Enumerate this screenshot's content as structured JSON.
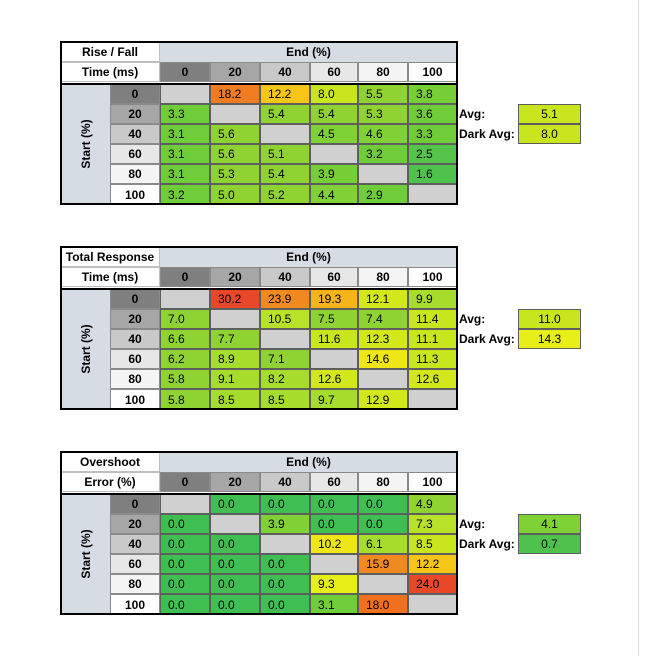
{
  "columns": [
    "0",
    "20",
    "40",
    "60",
    "80",
    "100"
  ],
  "rows": [
    "0",
    "20",
    "40",
    "60",
    "80",
    "100"
  ],
  "header_colors": [
    "#7f7f7f",
    "#a6a6a6",
    "#c9c9c9",
    "#e7e7e7",
    "#f4f4f4",
    "#ffffff"
  ],
  "tables": [
    {
      "title_line1": "Rise / Fall",
      "title_line2": "Time (ms)",
      "end_label": "End (%)",
      "start_label": "Start (%)",
      "values": [
        [
          null,
          "18.2",
          "12.2",
          "8.0",
          "5.5",
          "3.8"
        ],
        [
          "3.3",
          null,
          "5.4",
          "5.4",
          "5.3",
          "3.6"
        ],
        [
          "3.1",
          "5.6",
          null,
          "4.5",
          "4.6",
          "3.3"
        ],
        [
          "3.1",
          "5.6",
          "5.1",
          null,
          "3.2",
          "2.5"
        ],
        [
          "3.1",
          "5.3",
          "5.4",
          "3.9",
          null,
          "1.6"
        ],
        [
          "3.2",
          "5.0",
          "5.2",
          "4.4",
          "2.9",
          null
        ]
      ],
      "colors": [
        [
          null,
          "#f07c22",
          "#f5c518",
          "#c8e61e",
          "#8fd332",
          "#77cf38"
        ],
        [
          "#6fcd3a",
          null,
          "#8fd332",
          "#8fd332",
          "#8fd332",
          "#6fcd3a"
        ],
        [
          "#6fcd3a",
          "#8fd332",
          null,
          "#80d135",
          "#80d135",
          "#6fcd3a"
        ],
        [
          "#6fcd3a",
          "#8fd332",
          "#8fd332",
          null,
          "#6fcd3a",
          "#55c44a"
        ],
        [
          "#6fcd3a",
          "#8fd332",
          "#8fd332",
          "#77cf38",
          null,
          "#4ec24d"
        ],
        [
          "#6fcd3a",
          "#8fd332",
          "#8fd332",
          "#80d135",
          "#6fcd3a",
          null
        ]
      ],
      "avg_label": "Avg:",
      "avg_value": "5.1",
      "avg_color": "#c8e61e",
      "dark_avg_label": "Dark Avg:",
      "dark_avg_value": "8.0",
      "dark_avg_color": "#c8e61e"
    },
    {
      "title_line1": "Total Response",
      "title_line2": "Time (ms)",
      "end_label": "End (%)",
      "start_label": "Start (%)",
      "values": [
        [
          null,
          "30.2",
          "23.9",
          "19.3",
          "12.1",
          "9.9"
        ],
        [
          "7.0",
          null,
          "10.5",
          "7.5",
          "7.4",
          "11.4"
        ],
        [
          "6.6",
          "7.7",
          null,
          "11.6",
          "12.3",
          "11.1"
        ],
        [
          "6.2",
          "8.9",
          "7.1",
          null,
          "14.6",
          "11.3"
        ],
        [
          "5.8",
          "9.1",
          "8.2",
          "12.6",
          null,
          "12.6"
        ],
        [
          "5.8",
          "8.5",
          "8.5",
          "9.7",
          "12.9",
          null
        ]
      ],
      "colors": [
        [
          null,
          "#e8472a",
          "#f08a20",
          "#f5b41a",
          "#d2e81c",
          "#a6dc2c"
        ],
        [
          "#8fd332",
          null,
          "#b8e228",
          "#8fd332",
          "#8fd332",
          "#c8e61e"
        ],
        [
          "#8fd332",
          "#8fd332",
          null,
          "#c8e61e",
          "#d2e81c",
          "#c8e61e"
        ],
        [
          "#8fd332",
          "#a6dc2c",
          "#8fd332",
          null,
          "#f0e616",
          "#c8e61e"
        ],
        [
          "#8fd332",
          "#a6dc2c",
          "#a6dc2c",
          "#d2e81c",
          null,
          "#d2e81c"
        ],
        [
          "#8fd332",
          "#a6dc2c",
          "#a6dc2c",
          "#a6dc2c",
          "#d2e81c",
          null
        ]
      ],
      "avg_label": "Avg:",
      "avg_value": "11.0",
      "avg_color": "#c8e61e",
      "dark_avg_label": "Dark Avg:",
      "dark_avg_value": "14.3",
      "dark_avg_color": "#e8ee18"
    },
    {
      "title_line1": "Overshoot",
      "title_line2": "Error (%)",
      "end_label": "End (%)",
      "start_label": "Start (%)",
      "values": [
        [
          null,
          "0.0",
          "0.0",
          "0.0",
          "0.0",
          "4.9"
        ],
        [
          "0.0",
          null,
          "3.9",
          "0.0",
          "0.0",
          "7.3"
        ],
        [
          "0.0",
          "0.0",
          null,
          "10.2",
          "6.1",
          "8.5"
        ],
        [
          "0.0",
          "0.0",
          "0.0",
          null,
          "15.9",
          "12.2"
        ],
        [
          "0.0",
          "0.0",
          "0.0",
          "9.3",
          null,
          "24.0"
        ],
        [
          "0.0",
          "0.0",
          "0.0",
          "3.1",
          "18.0",
          null
        ]
      ],
      "colors": [
        [
          null,
          "#3fbe52",
          "#3fbe52",
          "#3fbe52",
          "#3fbe52",
          "#8fd332"
        ],
        [
          "#3fbe52",
          null,
          "#80d135",
          "#3fbe52",
          "#3fbe52",
          "#b8e228"
        ],
        [
          "#3fbe52",
          "#3fbe52",
          null,
          "#f0e616",
          "#a6dc2c",
          "#c8e61e"
        ],
        [
          "#3fbe52",
          "#3fbe52",
          "#3fbe52",
          null,
          "#f08a20",
          "#f5c518"
        ],
        [
          "#3fbe52",
          "#3fbe52",
          "#3fbe52",
          "#e8ee18",
          null,
          "#e8472a"
        ],
        [
          "#3fbe52",
          "#3fbe52",
          "#3fbe52",
          "#6fcd3a",
          "#f07020",
          null
        ]
      ],
      "avg_label": "Avg:",
      "avg_value": "4.1",
      "avg_color": "#80d135",
      "dark_avg_label": "Dark Avg:",
      "dark_avg_value": "0.7",
      "dark_avg_color": "#4ec24d"
    }
  ]
}
